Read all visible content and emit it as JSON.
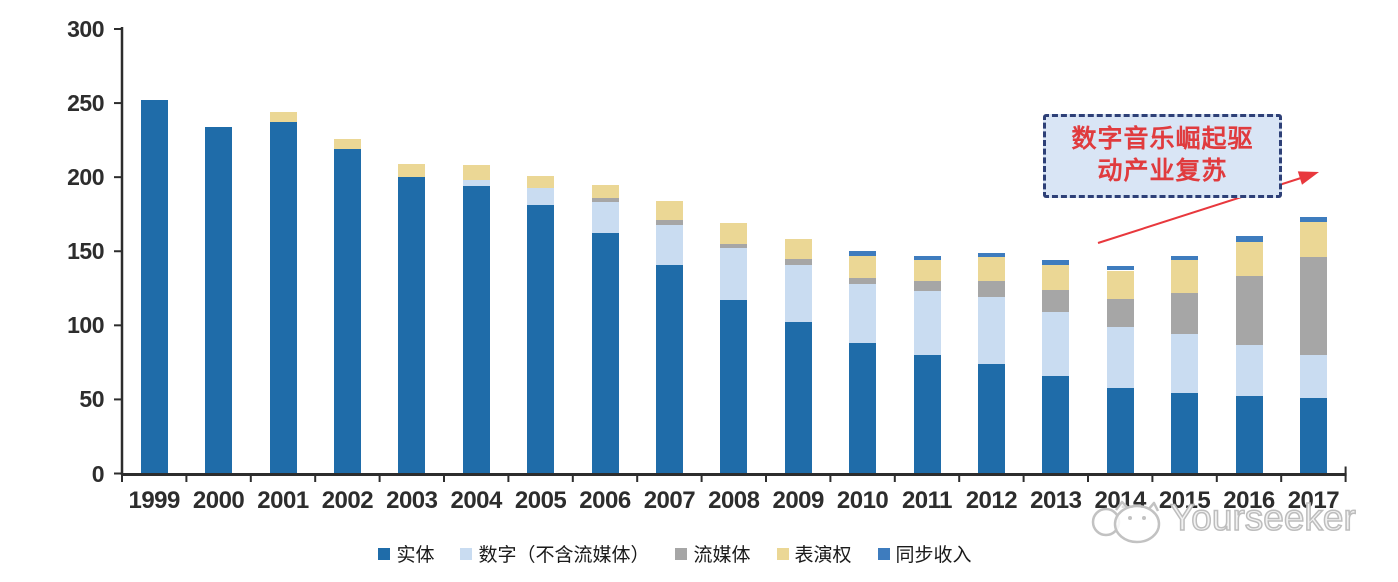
{
  "chart_data": {
    "type": "bar",
    "stacked": true,
    "title": "",
    "xlabel": "",
    "ylabel": "",
    "categories": [
      "1999",
      "2000",
      "2001",
      "2002",
      "2003",
      "2004",
      "2005",
      "2006",
      "2007",
      "2008",
      "2009",
      "2010",
      "2011",
      "2012",
      "2013",
      "2014",
      "2015",
      "2016",
      "2017"
    ],
    "series": [
      {
        "name": "实体",
        "color": "#1F6CA9",
        "values": [
          252,
          234,
          237,
          219,
          200,
          194,
          181,
          162,
          141,
          117,
          102,
          88,
          80,
          74,
          66,
          58,
          54,
          52,
          51
        ]
      },
      {
        "name": "数字（不含流媒体）",
        "color": "#C9DCF1",
        "values": [
          0,
          0,
          0,
          0,
          0,
          4,
          12,
          21,
          27,
          35,
          39,
          40,
          43,
          45,
          43,
          41,
          40,
          35,
          29
        ]
      },
      {
        "name": "流媒体",
        "color": "#A6A6A6",
        "values": [
          0,
          0,
          0,
          0,
          0,
          0,
          0,
          3,
          3,
          3,
          4,
          4,
          7,
          11,
          15,
          19,
          28,
          46,
          66
        ]
      },
      {
        "name": "表演权",
        "color": "#EBD795",
        "values": [
          0,
          0,
          7,
          7,
          9,
          10,
          8,
          9,
          13,
          14,
          13,
          15,
          14,
          16,
          17,
          19,
          22,
          23,
          24
        ]
      },
      {
        "name": "同步收入",
        "color": "#3E7CBE",
        "values": [
          0,
          0,
          0,
          0,
          0,
          0,
          0,
          0,
          0,
          0,
          0,
          3,
          3,
          3,
          3,
          3,
          3,
          4,
          3
        ]
      }
    ],
    "ylim": [
      0,
      300
    ],
    "yticks": [
      0,
      50,
      100,
      150,
      200,
      250,
      300
    ],
    "grid": false,
    "legend_position": "bottom"
  },
  "annotation": {
    "line1": "数字音乐崛起驱",
    "line2": "动产业复苏",
    "text_color": "#E03B3E",
    "border_color": "#2E4077",
    "fill_color": "#D9E5F5",
    "arrow_color": "#E8383D"
  },
  "watermark": {
    "text": "Yourseeker",
    "color": "#BDBDBD"
  },
  "axis_color": "#2D2D2D"
}
